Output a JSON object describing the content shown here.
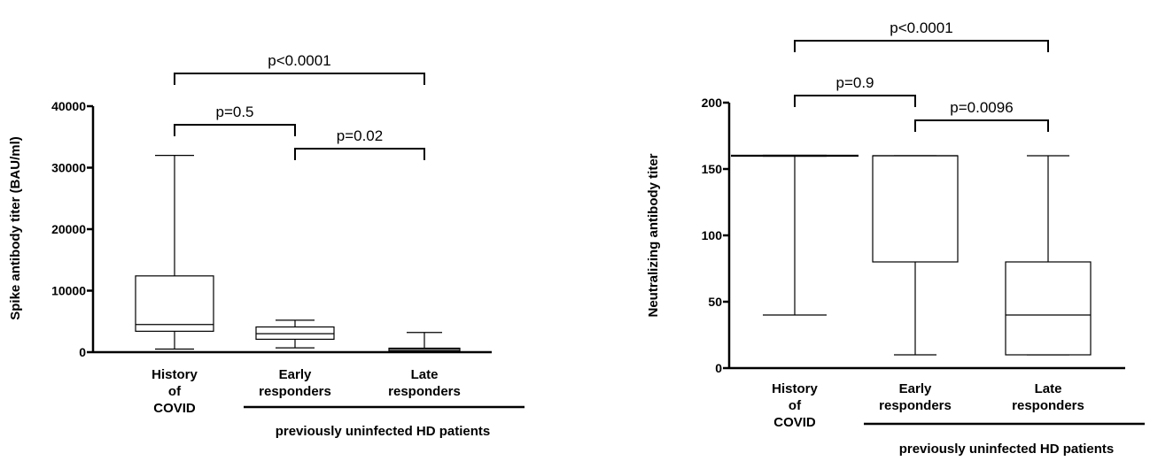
{
  "chart_data": [
    {
      "type": "box",
      "ylabel": "Spike antibody titer (BAU/ml)",
      "ylim": [
        0,
        40000
      ],
      "yticks": [
        "0",
        "10000",
        "20000",
        "30000",
        "40000"
      ],
      "categories": [
        [
          "History",
          "of",
          "COVID"
        ],
        [
          "Early",
          "responders"
        ],
        [
          "Late",
          "responders"
        ]
      ],
      "boxes": [
        {
          "min": 500,
          "q1": 3400,
          "median": 4500,
          "q3": 12400,
          "max": 32000
        },
        {
          "min": 700,
          "q1": 2100,
          "median": 3000,
          "q3": 4100,
          "max": 5200
        },
        {
          "min": 0,
          "q1": 200,
          "median": 450,
          "q3": 650,
          "max": 3200
        }
      ],
      "comparisons": [
        {
          "from": 0,
          "to": 2,
          "label": "p<0.0001"
        },
        {
          "from": 0,
          "to": 1,
          "label": "p=0.5"
        },
        {
          "from": 1,
          "to": 2,
          "label": "p=0.02"
        }
      ],
      "group_label": "previously uninfected HD patients"
    },
    {
      "type": "box",
      "ylabel": "Neutralizing antibody titer",
      "ylim": [
        0,
        200
      ],
      "yticks": [
        "0",
        "50",
        "100",
        "150",
        "200"
      ],
      "categories": [
        [
          "History",
          "of",
          "COVID"
        ],
        [
          "Early",
          "responders"
        ],
        [
          "Late",
          "responders"
        ]
      ],
      "boxes": [
        {
          "min": 40,
          "q1": 160,
          "median": 160,
          "q3": 160,
          "max": 160
        },
        {
          "min": 10,
          "q1": 80,
          "median": 160,
          "q3": 160,
          "max": 160
        },
        {
          "min": 10,
          "q1": 10,
          "median": 40,
          "q3": 80,
          "max": 160
        }
      ],
      "comparisons": [
        {
          "from": 0,
          "to": 2,
          "label": "p<0.0001"
        },
        {
          "from": 0,
          "to": 1,
          "label": "p=0.9"
        },
        {
          "from": 1,
          "to": 2,
          "label": "p=0.0096"
        }
      ],
      "group_label": "previously uninfected HD patients"
    }
  ]
}
